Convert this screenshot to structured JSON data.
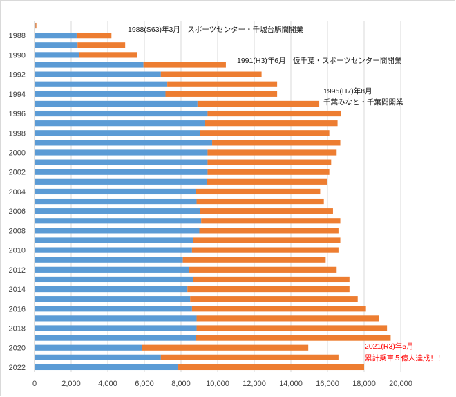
{
  "chart_data": {
    "type": "bar",
    "orientation": "horizontal",
    "stacked": true,
    "title": "",
    "xlabel": "",
    "ylabel": "",
    "xlim": [
      0,
      20000
    ],
    "x_ticks": [
      "0",
      "2,000",
      "4,000",
      "6,000",
      "8,000",
      "10,000",
      "12,000",
      "14,000",
      "16,000",
      "18,000",
      "20,000"
    ],
    "x_tick_values": [
      0,
      2000,
      4000,
      6000,
      8000,
      10000,
      12000,
      14000,
      16000,
      18000,
      20000
    ],
    "categories": [
      1987,
      1988,
      1989,
      1990,
      1991,
      1992,
      1993,
      1994,
      1995,
      1996,
      1997,
      1998,
      1999,
      2000,
      2001,
      2002,
      2003,
      2004,
      2005,
      2006,
      2007,
      2008,
      2009,
      2010,
      2011,
      2012,
      2013,
      2014,
      2015,
      2016,
      2017,
      2018,
      2019,
      2020,
      2021,
      2022
    ],
    "y_tick_labels": [
      "1988",
      "1990",
      "1992",
      "1994",
      "1996",
      "1998",
      "2000",
      "2002",
      "2004",
      "2006",
      "2008",
      "2010",
      "2012",
      "2014",
      "2016",
      "2018",
      "2020",
      "2022"
    ],
    "y_tick_categories": [
      1988,
      1990,
      1992,
      1994,
      1996,
      1998,
      2000,
      2002,
      2004,
      2006,
      2008,
      2010,
      2012,
      2014,
      2016,
      2018,
      2020,
      2022
    ],
    "series": [
      {
        "name": "series-blue",
        "color": "#5b9bd5",
        "values": [
          50,
          2300,
          2350,
          2450,
          5950,
          6900,
          7250,
          7150,
          8900,
          9450,
          9300,
          9050,
          9700,
          9450,
          9450,
          9450,
          9400,
          8800,
          8850,
          9050,
          9100,
          9000,
          8650,
          8600,
          8100,
          8450,
          8650,
          8350,
          8500,
          8600,
          8850,
          8850,
          8800,
          5850,
          6900,
          7850
        ]
      },
      {
        "name": "series-orange",
        "color": "#ed7d31",
        "values": [
          50,
          1900,
          2600,
          3150,
          4500,
          5500,
          6000,
          6100,
          6650,
          7300,
          7250,
          7050,
          7000,
          7050,
          6750,
          6650,
          6600,
          6800,
          6950,
          7250,
          7600,
          7600,
          8050,
          8000,
          7800,
          8050,
          8550,
          8850,
          9150,
          9500,
          9950,
          10400,
          10650,
          9100,
          9700,
          10150
        ]
      }
    ],
    "annotations": [
      {
        "name": "annotation-1988",
        "text": "1988(S63)年3月　スポーツセンター・千城台駅間開業",
        "color": "#1a1a1a"
      },
      {
        "name": "annotation-1991",
        "text": "1991(H3)年6月　仮千葉・スポーツセンター間開業",
        "color": "#1a1a1a"
      },
      {
        "name": "annotation-1995-line1",
        "text": "1995(H7)年8月",
        "color": "#1a1a1a"
      },
      {
        "name": "annotation-1995-line2",
        "text": "千葉みなと・千葉間開業",
        "color": "#1a1a1a"
      },
      {
        "name": "annotation-2021-line1",
        "text": "2021(R3)年5月",
        "color": "#ff0000"
      },
      {
        "name": "annotation-2021-line2",
        "text": "累計乗車５億人達成！！",
        "color": "#ff0000"
      }
    ],
    "grid": true,
    "legend": "none"
  }
}
